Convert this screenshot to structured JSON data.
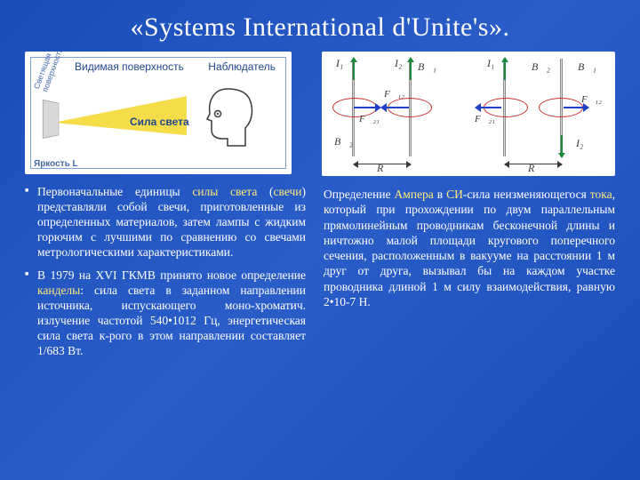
{
  "title": "«Systems International d'Unite's».",
  "colors": {
    "slide_bg_a": "#1a4db8",
    "slide_bg_b": "#2a5dc8",
    "text": "#ffffff",
    "highlight": "#ffe97a",
    "figure_bg": "#ffffff",
    "figure_border": "#7da0d4",
    "figure_label": "#20468f",
    "figure_bottom_label": "#4468a8",
    "cone_fill": "#f5dd4a",
    "ellipse_red": "#cc2a2a",
    "arrow_green": "#1c8a3a",
    "arrow_blue": "#2040c8",
    "wire_grey": "#dadada"
  },
  "typography": {
    "title_fontsize": 30,
    "body_fontsize": 13.5,
    "figure_label_fontsize": 12,
    "font_family": "Times New Roman"
  },
  "left_figure": {
    "labels": {
      "visible_surface": "Видимая поверхность",
      "observer": "Наблюдатель",
      "lux_force": "Сила света",
      "brightness": "Яркость L",
      "emitting_surface": "Светящая\nповерхность"
    }
  },
  "right_figure": {
    "labels": {
      "I1": "I₁",
      "I2": "I₂",
      "B1": "B⃗₁",
      "B2": "B⃗₂",
      "F12": "F⃗₁₂",
      "F21": "F⃗₂₁",
      "R": "R"
    }
  },
  "bullets": [
    {
      "parts": [
        {
          "t": "Первоначальные единицы "
        },
        {
          "t": "силы света",
          "hl": true
        },
        {
          "t": " ("
        },
        {
          "t": "свечи",
          "hl": true
        },
        {
          "t": ") представляли собой свечи, приготовленные из определенных материалов, затем лампы с жидким горючим с лучшими по сравнению со свечами метрологическими характеристиками."
        }
      ]
    },
    {
      "parts": [
        {
          "t": "В 1979 на XVI ГКМВ принято новое определение "
        },
        {
          "t": "канделы",
          "hl": true
        },
        {
          "t": ": сила света в заданном направлении источника, испускающего моно-хроматич. излучение частотой 540•1012 Гц, энергетическая сила света к-рого в этом направлении составляет 1/683 Вт."
        }
      ]
    }
  ],
  "right_paragraph": {
    "parts": [
      {
        "t": "Определение "
      },
      {
        "t": "Ампера",
        "hl": true
      },
      {
        "t": " в "
      },
      {
        "t": "СИ",
        "hl": true
      },
      {
        "t": "-сила неизменяющегося "
      },
      {
        "t": "тока",
        "hl": true
      },
      {
        "t": ", который при прохождении по двум параллельным прямолинейным проводникам бесконечной длины и ничтожно малой площади кругового поперечного сечения, расположенным в вакууме на расстоянии 1 м друг от друга, вызывал бы на каждом участке проводника длиной 1 м силу взаимодействия, равную 2•10-7 Н."
      }
    ]
  }
}
